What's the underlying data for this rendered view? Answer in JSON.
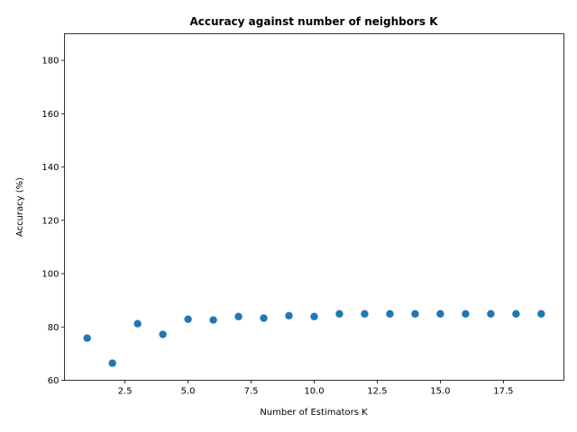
{
  "chart_data": {
    "type": "scatter",
    "title": "Accuracy against number of neighbors K",
    "xlabel": "Number of Estimators K",
    "ylabel": "Accuracy (%)",
    "x": [
      1,
      2,
      3,
      4,
      5,
      6,
      7,
      8,
      9,
      10,
      11,
      12,
      13,
      14,
      15,
      16,
      17,
      18,
      19
    ],
    "y": [
      75.8,
      66.4,
      81.2,
      77.2,
      82.9,
      82.6,
      83.9,
      83.3,
      84.2,
      83.9,
      84.9,
      84.9,
      84.9,
      84.9,
      84.9,
      84.9,
      84.9,
      84.9,
      84.9
    ],
    "xlim": [
      0.1,
      19.9
    ],
    "ylim": [
      60,
      190
    ],
    "xticks": [
      2.5,
      5.0,
      7.5,
      10.0,
      12.5,
      15.0,
      17.5
    ],
    "xtick_labels": [
      "2.5",
      "5.0",
      "7.5",
      "10.0",
      "12.5",
      "15.0",
      "17.5"
    ],
    "yticks": [
      60,
      80,
      100,
      120,
      140,
      160,
      180
    ],
    "ytick_labels": [
      "60",
      "80",
      "100",
      "120",
      "140",
      "160",
      "180"
    ],
    "grid": false,
    "marker_color": "#1f77b4"
  }
}
